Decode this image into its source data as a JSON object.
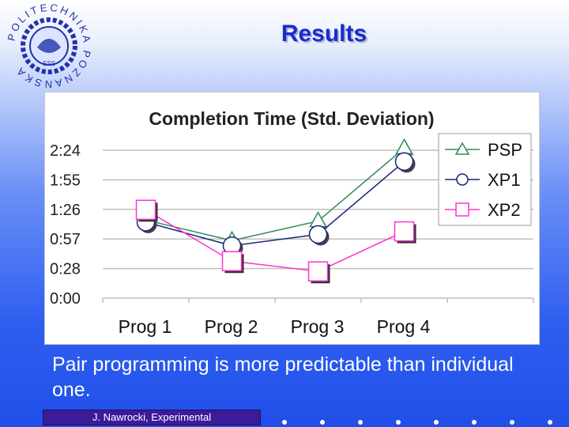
{
  "slide": {
    "title": "Results",
    "caption": "Pair programming is more predictable than individual one.",
    "footer": "J. Nawrocki, Experimental"
  },
  "logo": {
    "ring_text": "POLITECHNIKA POZNANSKA",
    "center_text": "SSS"
  },
  "colors": {
    "title": "#1a2ad0",
    "psp": "#2e8b57",
    "xp1": "#1a237e",
    "xp2": "#ff33cc",
    "grid": "#bfbfbf"
  },
  "chart_data": {
    "type": "line",
    "title": "Completion Time (Std. Deviation)",
    "categories": [
      "Prog 1",
      "Prog 2",
      "Prog 3",
      "Prog 4"
    ],
    "yticks": [
      "2:24",
      "1:55",
      "1:26",
      "0:57",
      "0:28",
      "0:00"
    ],
    "ylim_minutes": [
      0,
      144
    ],
    "grid": true,
    "legend_position": "top-right",
    "series": [
      {
        "name": "PSP",
        "marker": "triangle",
        "color": "#2e8b57",
        "values_minutes": [
          76,
          56,
          75,
          146
        ]
      },
      {
        "name": "XP1",
        "marker": "circle",
        "color": "#1a237e",
        "values_minutes": [
          74,
          51,
          62,
          133
        ]
      },
      {
        "name": "XP2",
        "marker": "square",
        "color": "#ff33cc",
        "values_minutes": [
          86,
          36,
          26,
          65
        ]
      }
    ]
  }
}
